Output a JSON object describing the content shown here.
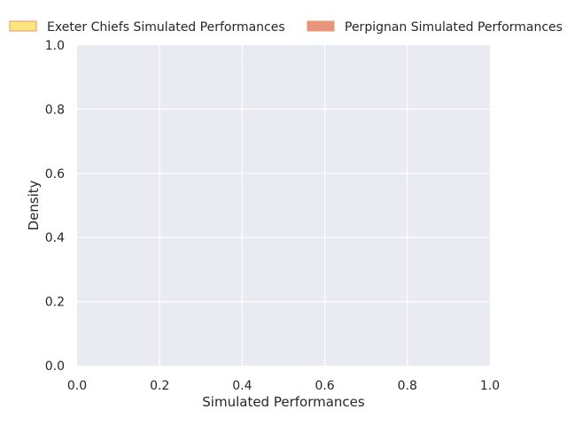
{
  "chart_data": {
    "type": "area",
    "title": "",
    "xlabel": "Simulated Performances",
    "ylabel": "Density",
    "xlim": [
      0.0,
      1.0
    ],
    "ylim": [
      0.0,
      1.0
    ],
    "xticks": [
      "0.0",
      "0.2",
      "0.4",
      "0.6",
      "0.8",
      "1.0"
    ],
    "yticks": [
      "0.0",
      "0.2",
      "0.4",
      "0.6",
      "0.8",
      "1.0"
    ],
    "grid": true,
    "legend_position": "top",
    "series": [
      {
        "name": "Exeter Chiefs Simulated Performances",
        "color": "#ffe57f",
        "edge_color": "#e8956a",
        "values": []
      },
      {
        "name": "Perpignan Simulated Performances",
        "color": "#e8957f",
        "edge_color": "#e8956a",
        "values": []
      }
    ],
    "plot_background": "#eaeaf2",
    "grid_color": "#ffffff"
  }
}
